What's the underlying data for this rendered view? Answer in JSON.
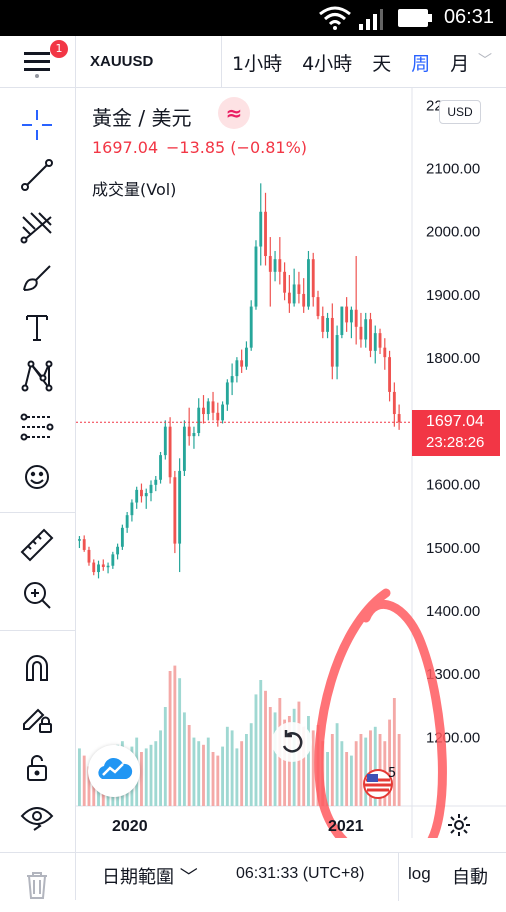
{
  "status_bar": {
    "time": "06:31"
  },
  "header": {
    "badge_count": "1",
    "symbol": "XAUUSD",
    "intervals": [
      {
        "label": "1小時",
        "active": false
      },
      {
        "label": "4小時",
        "active": false
      },
      {
        "label": "天",
        "active": false
      },
      {
        "label": "周",
        "active": true
      },
      {
        "label": "月",
        "active": false
      }
    ]
  },
  "legend": {
    "title": "黃金 / 美元",
    "price": "1697.04",
    "change": "−13.85 (−0.81%)",
    "volume_label": "成交量(Vol)",
    "currency": "USD"
  },
  "toolbar": {
    "tools": [
      "crosshair-icon",
      "trend-line-icon",
      "pitchfork-icon",
      "brush-icon",
      "text-icon",
      "pattern-icon",
      "prediction-icon",
      "emoji-icon",
      "ruler-icon",
      "zoom-in-icon",
      "magnet-icon",
      "lock-draw-icon",
      "lock-icon",
      "eye-icon",
      "trash-icon"
    ]
  },
  "price_tag": {
    "price": "1697.04",
    "countdown": "23:28:26"
  },
  "events": {
    "count": "5"
  },
  "bottom_bar": {
    "date_range": "日期範圍",
    "clock": "06:31:33 (UTC+8)",
    "log": "log",
    "auto": "自動"
  },
  "colors": {
    "up": "#26a69a",
    "down": "#ef5350",
    "volume_up": "#9fd8d2",
    "volume_down": "#f4a9a7",
    "annotation": "#ff5a5f",
    "accent": "#2962ff"
  },
  "chart_data": {
    "type": "candlestick",
    "ylim": [
      1150,
      2210
    ],
    "yticks": [
      "2200.00",
      "2100.00",
      "2000.00",
      "1900.00",
      "1800.00",
      "1700.00",
      "1600.00",
      "1500.00",
      "1400.00",
      "1300.00",
      "1200.00"
    ],
    "xticks": [
      "2020",
      "2021"
    ],
    "last_price": 1697.04,
    "candles": [
      [
        1510,
        1517,
        1498,
        1512
      ],
      [
        1512,
        1518,
        1492,
        1495
      ],
      [
        1495,
        1500,
        1470,
        1475
      ],
      [
        1475,
        1480,
        1455,
        1460
      ],
      [
        1460,
        1478,
        1450,
        1472
      ],
      [
        1472,
        1480,
        1462,
        1468
      ],
      [
        1468,
        1475,
        1458,
        1470
      ],
      [
        1470,
        1492,
        1465,
        1488
      ],
      [
        1488,
        1505,
        1480,
        1500
      ],
      [
        1500,
        1535,
        1495,
        1530
      ],
      [
        1530,
        1555,
        1522,
        1550
      ],
      [
        1550,
        1575,
        1540,
        1570
      ],
      [
        1570,
        1595,
        1560,
        1590
      ],
      [
        1590,
        1600,
        1570,
        1580
      ],
      [
        1580,
        1592,
        1560,
        1585
      ],
      [
        1585,
        1605,
        1572,
        1598
      ],
      [
        1598,
        1612,
        1588,
        1606
      ],
      [
        1606,
        1650,
        1600,
        1645
      ],
      [
        1645,
        1700,
        1638,
        1690
      ],
      [
        1690,
        1705,
        1600,
        1610
      ],
      [
        1610,
        1620,
        1490,
        1505
      ],
      [
        1505,
        1640,
        1460,
        1620
      ],
      [
        1620,
        1700,
        1612,
        1690
      ],
      [
        1690,
        1720,
        1660,
        1675
      ],
      [
        1675,
        1690,
        1655,
        1680
      ],
      [
        1680,
        1735,
        1675,
        1720
      ],
      [
        1720,
        1740,
        1695,
        1710
      ],
      [
        1710,
        1735,
        1700,
        1730
      ],
      [
        1730,
        1745,
        1700,
        1712
      ],
      [
        1712,
        1728,
        1690,
        1700
      ],
      [
        1700,
        1730,
        1695,
        1725
      ],
      [
        1725,
        1765,
        1715,
        1760
      ],
      [
        1760,
        1790,
        1740,
        1770
      ],
      [
        1770,
        1800,
        1760,
        1795
      ],
      [
        1795,
        1812,
        1775,
        1785
      ],
      [
        1785,
        1825,
        1780,
        1815
      ],
      [
        1815,
        1890,
        1810,
        1880
      ],
      [
        1880,
        1985,
        1875,
        1975
      ],
      [
        1975,
        2075,
        1945,
        2030
      ],
      [
        2030,
        2060,
        1945,
        1960
      ],
      [
        1960,
        1990,
        1880,
        1935
      ],
      [
        1935,
        1968,
        1920,
        1955
      ],
      [
        1955,
        1990,
        1915,
        1935
      ],
      [
        1935,
        1950,
        1890,
        1902
      ],
      [
        1902,
        1930,
        1870,
        1885
      ],
      [
        1885,
        1940,
        1880,
        1915
      ],
      [
        1915,
        1935,
        1885,
        1900
      ],
      [
        1900,
        1925,
        1870,
        1880
      ],
      [
        1880,
        1968,
        1875,
        1955
      ],
      [
        1955,
        1965,
        1880,
        1895
      ],
      [
        1895,
        1905,
        1860,
        1865
      ],
      [
        1865,
        1880,
        1830,
        1840
      ],
      [
        1840,
        1870,
        1830,
        1862
      ],
      [
        1862,
        1885,
        1765,
        1785
      ],
      [
        1785,
        1850,
        1765,
        1835
      ],
      [
        1835,
        1880,
        1830,
        1880
      ],
      [
        1880,
        1895,
        1840,
        1855
      ],
      [
        1855,
        1880,
        1830,
        1875
      ],
      [
        1875,
        1960,
        1820,
        1848
      ],
      [
        1848,
        1870,
        1815,
        1828
      ],
      [
        1828,
        1870,
        1815,
        1860
      ],
      [
        1860,
        1870,
        1800,
        1810
      ],
      [
        1810,
        1850,
        1790,
        1838
      ],
      [
        1838,
        1845,
        1805,
        1815
      ],
      [
        1815,
        1830,
        1780,
        1800
      ],
      [
        1800,
        1810,
        1730,
        1745
      ],
      [
        1745,
        1760,
        1690,
        1710
      ],
      [
        1710,
        1725,
        1685,
        1697
      ]
    ],
    "volumes": [
      0.32,
      0.28,
      0.22,
      0.24,
      0.3,
      0.26,
      0.22,
      0.28,
      0.34,
      0.36,
      0.3,
      0.33,
      0.38,
      0.3,
      0.32,
      0.34,
      0.36,
      0.42,
      0.55,
      0.75,
      0.78,
      0.71,
      0.52,
      0.45,
      0.38,
      0.36,
      0.34,
      0.38,
      0.3,
      0.28,
      0.33,
      0.44,
      0.42,
      0.32,
      0.36,
      0.4,
      0.46,
      0.62,
      0.7,
      0.64,
      0.55,
      0.52,
      0.6,
      0.48,
      0.5,
      0.54,
      0.58,
      0.44,
      0.5,
      0.42,
      0.45,
      0.36,
      0.3,
      0.4,
      0.46,
      0.36,
      0.3,
      0.28,
      0.36,
      0.4,
      0.38,
      0.42,
      0.44,
      0.4,
      0.36,
      0.48,
      0.6,
      0.4
    ]
  }
}
